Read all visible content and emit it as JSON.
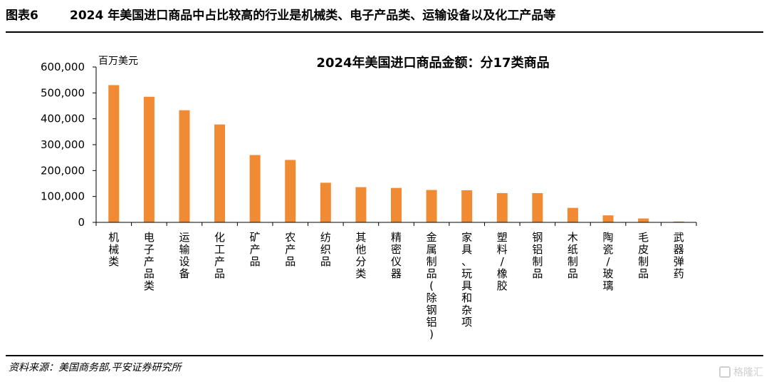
{
  "header": {
    "figure_label": "图表6",
    "title": "2024 年美国进口商品中占比较高的行业是机械类、电子产品类、运输设备以及化工产品等"
  },
  "footer": {
    "source": "资料来源：美国商务部,平安证券研究所",
    "watermark": "格隆汇"
  },
  "chart_data": {
    "type": "bar",
    "title": "2024年美国进口商品金额：分17类商品",
    "ylabel": "百万美元",
    "xlabel": "",
    "ylim": [
      0,
      600000
    ],
    "yticks": [
      0,
      100000,
      200000,
      300000,
      400000,
      500000,
      600000
    ],
    "ytick_labels": [
      "0",
      "100,000",
      "200,000",
      "300,000",
      "400,000",
      "500,000",
      "600,000"
    ],
    "grid": false,
    "legend": "none",
    "bar_color": "#F08A33",
    "categories": [
      "机械类",
      "电子产品类",
      "运输设备",
      "化工产品",
      "矿产品",
      "农产品",
      "纺织品",
      "其他分类",
      "精密仪器",
      "金属制品(除钢铝)",
      "家具、玩具和杂项",
      "塑料/橡胶",
      "钢铝制品",
      "木纸制品",
      "陶瓷/玻璃",
      "毛皮制品",
      "武器弹药"
    ],
    "values": [
      530000,
      485000,
      433000,
      378000,
      260000,
      241000,
      153000,
      136000,
      133000,
      125000,
      124000,
      113000,
      113000,
      56000,
      27000,
      15000,
      3000
    ]
  }
}
